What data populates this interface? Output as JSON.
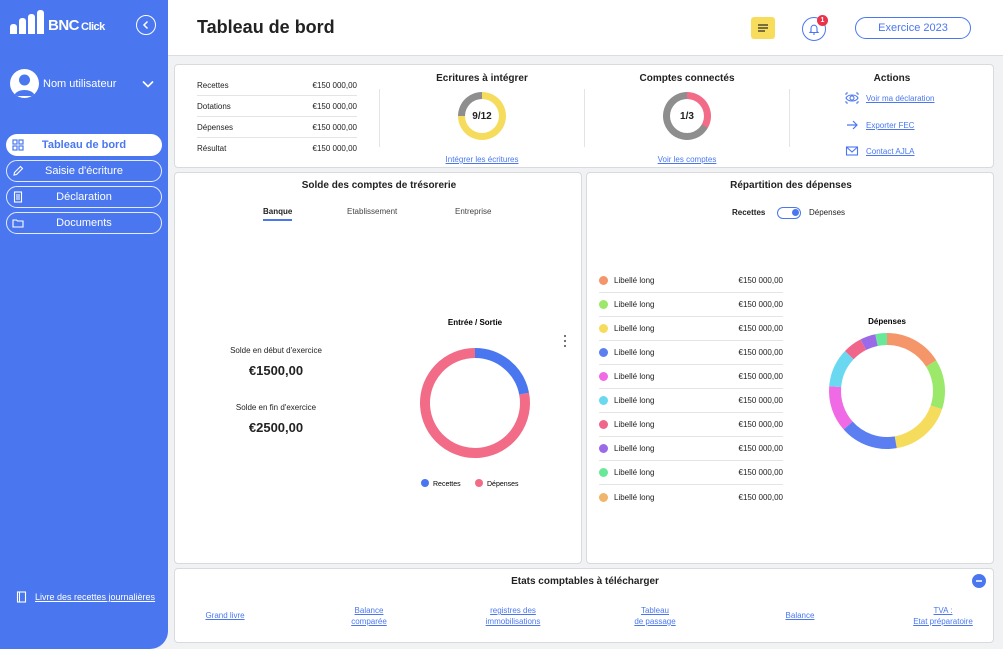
{
  "app": {
    "logo_text": "BNC",
    "logo_sub": "Click"
  },
  "sidebar": {
    "user_name": "Nom utilisateur",
    "items": [
      {
        "label": "Tableau de bord",
        "active": true
      },
      {
        "label": "Saisie d'écriture",
        "active": false
      },
      {
        "label": "Déclaration",
        "active": false
      },
      {
        "label": "Documents",
        "active": false
      }
    ],
    "bottom_link": "Livre des recettes journalières"
  },
  "header": {
    "title": "Tableau de bord",
    "notification_count": "1",
    "exercise_label": "Exercice 2023"
  },
  "summary": {
    "rows": [
      {
        "label": "Recettes",
        "value": "€150 000,00"
      },
      {
        "label": "Dotations",
        "value": "€150 000,00"
      },
      {
        "label": "Dépenses",
        "value": "€150 000,00"
      },
      {
        "label": "Résultat",
        "value": "€150 000,00"
      }
    ]
  },
  "ecritures": {
    "title": "Ecritures à intégrer",
    "value": "9/12",
    "fraction": 0.75,
    "link": "Intégrer les écritures"
  },
  "comptes": {
    "title": "Comptes connectés",
    "value": "1/3",
    "fraction": 0.333,
    "link": "Voir les comptes"
  },
  "actions": {
    "title": "Actions",
    "items": [
      {
        "label": "Voir ma déclaration",
        "icon": "eye-icon"
      },
      {
        "label": "Exporter FEC",
        "icon": "arrow-right-icon"
      },
      {
        "label": "Contact AJLA",
        "icon": "mail-icon"
      }
    ]
  },
  "tresorerie": {
    "title": "Solde des comptes de trésorerie",
    "tabs": [
      "Banque",
      "Etablissement",
      "Entreprise"
    ],
    "start_label": "Solde en début d'exercice",
    "start_value": "€1500,00",
    "end_label": "Solde en fin d'exercice",
    "end_value": "€2500,00"
  },
  "repartition": {
    "title": "Répartition des dépenses",
    "toggle_left": "Recettes",
    "toggle_right": "Dépenses",
    "rows": [
      {
        "label": "Libellé long",
        "value": "€150 000,00",
        "color": "#f4956a"
      },
      {
        "label": "Libellé long",
        "value": "€150 000,00",
        "color": "#9be86a"
      },
      {
        "label": "Libellé long",
        "value": "€150 000,00",
        "color": "#f6dc5c"
      },
      {
        "label": "Libellé long",
        "value": "€150 000,00",
        "color": "#5b7ff0"
      },
      {
        "label": "Libellé long",
        "value": "€150 000,00",
        "color": "#f06ae6"
      },
      {
        "label": "Libellé long",
        "value": "€150 000,00",
        "color": "#6ad8f0"
      },
      {
        "label": "Libellé long",
        "value": "€150 000,00",
        "color": "#f0668a"
      },
      {
        "label": "Libellé long",
        "value": "€150 000,00",
        "color": "#9a6ae8"
      },
      {
        "label": "Libellé long",
        "value": "€150 000,00",
        "color": "#6ae89a"
      },
      {
        "label": "Libellé long",
        "value": "€150 000,00",
        "color": "#f0b46a"
      }
    ]
  },
  "etats": {
    "title": "Etats comptables à télécharger",
    "links": [
      "Grand livre",
      "Balance\ncomparée",
      "registres des\nimmobilisations",
      "Tableau\nde passage",
      "Balance",
      "TVA :\nEtat préparatoire"
    ]
  },
  "chart_data": [
    {
      "type": "pie",
      "title": "Entrée / Sortie",
      "categories": [
        "Recettes",
        "Dépenses"
      ],
      "values": [
        22,
        78
      ],
      "colors": [
        "#4a77f0",
        "#f26b87"
      ],
      "legend": "bottom"
    },
    {
      "type": "pie",
      "title": "Dépenses",
      "categories": [
        "Libellé long",
        "Libellé long",
        "Libellé long",
        "Libellé long",
        "Libellé long",
        "Libellé long",
        "Libellé long",
        "Libellé long",
        "Libellé long"
      ],
      "values": [
        15,
        13,
        16,
        15,
        12,
        10,
        5,
        4,
        3
      ],
      "colors": [
        "#f4956a",
        "#9be86a",
        "#f6dc5c",
        "#5b7ff0",
        "#f06ae6",
        "#6ad8f0",
        "#f0668a",
        "#9a6ae8",
        "#6ae89a"
      ],
      "legend": "none"
    }
  ]
}
